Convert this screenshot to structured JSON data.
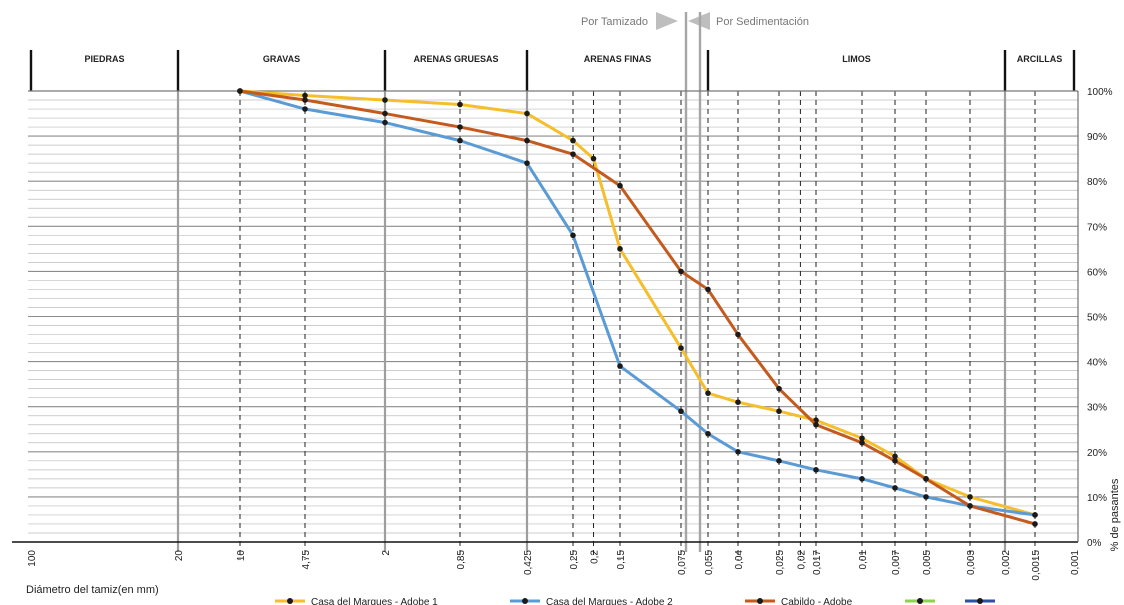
{
  "chart_data": {
    "type": "line",
    "ylabel": "% de pasantes",
    "xlabel": "Diámetro del tamiz(en mm)",
    "y_tick_labels": [
      "0%",
      "10%",
      "20%",
      "30%",
      "40%",
      "50%",
      "60%",
      "70%",
      "80%",
      "90%",
      "100%"
    ],
    "ylim": [
      0,
      100
    ],
    "x_scale": "log-reversed",
    "xlim": [
      100,
      0.001
    ],
    "x_tick_labels": [
      "100",
      "20",
      "10",
      "4,75",
      "2",
      "0,85",
      "0,425",
      "0,25",
      "0,2",
      "0,15",
      "0,075",
      "0,055",
      "0,04",
      "0,025",
      "0,02",
      "0,017",
      "0,01",
      "0,007",
      "0,005",
      "0,003",
      "0,002",
      "0,0015",
      "0,001"
    ],
    "method_labels": [
      "Por Tamizado",
      "Por Sedimentación"
    ],
    "classes": [
      {
        "label": "PIEDRAS"
      },
      {
        "label": "GRAVAS"
      },
      {
        "label": "ARENAS GRUESAS"
      },
      {
        "label": "ARENAS FINAS"
      },
      {
        "label": "LIMOS"
      },
      {
        "label": "ARCILLAS"
      }
    ],
    "series": [
      {
        "name": "Casa del Marques - Adobe 1",
        "color": "#F5BE2A",
        "x": [
          10,
          4.75,
          2,
          0.85,
          0.425,
          0.25,
          0.2,
          0.15,
          0.075,
          0.055,
          0.04,
          0.025,
          0.017,
          0.01,
          0.007,
          0.005,
          0.003,
          0.0015
        ],
        "y": [
          100,
          99,
          98,
          97,
          95,
          89,
          85,
          65,
          43,
          33,
          31,
          29,
          27,
          23,
          19,
          14,
          10,
          6
        ]
      },
      {
        "name": "Casa del Marques - Adobe 2",
        "color": "#5B9BD5",
        "x": [
          10,
          4.75,
          2,
          0.85,
          0.425,
          0.25,
          0.15,
          0.075,
          0.055,
          0.04,
          0.025,
          0.017,
          0.01,
          0.007,
          0.005,
          0.003,
          0.0015
        ],
        "y": [
          100,
          96,
          93,
          89,
          84,
          68,
          39,
          29,
          24,
          20,
          18,
          16,
          14,
          12,
          10,
          8,
          6
        ]
      },
      {
        "name": "Cabildo - Adobe",
        "color": "#C55A1F",
        "x": [
          10,
          4.75,
          2,
          0.85,
          0.425,
          0.25,
          0.15,
          0.075,
          0.055,
          0.04,
          0.025,
          0.017,
          0.01,
          0.007,
          0.005,
          0.003,
          0.0015
        ],
        "y": [
          100,
          98,
          95,
          92,
          89,
          86,
          79,
          60,
          56,
          46,
          34,
          26,
          22,
          18,
          14,
          8,
          4
        ]
      },
      {
        "name": "",
        "color": "#92D050",
        "x": [],
        "y": []
      },
      {
        "name": "",
        "color": "#2F4FA3",
        "x": [],
        "y": []
      }
    ],
    "grid": true,
    "legend_position": "bottom"
  }
}
